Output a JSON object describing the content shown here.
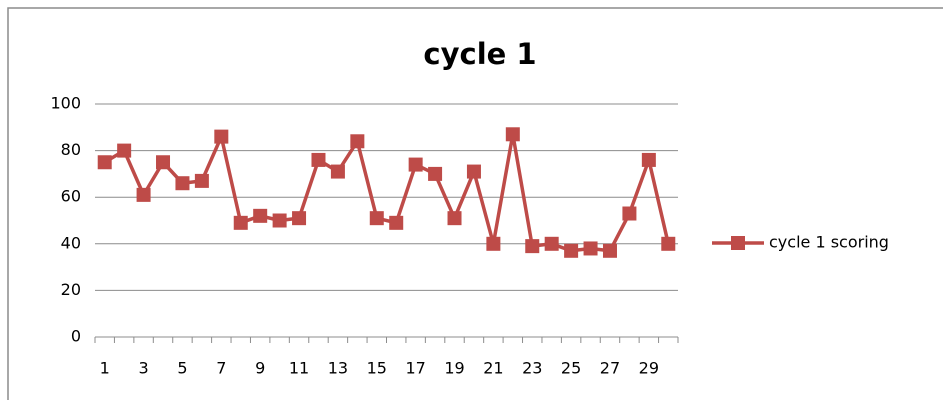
{
  "chart_data": {
    "type": "line",
    "title": "cycle 1",
    "categories": [
      1,
      null,
      3,
      null,
      5,
      null,
      7,
      null,
      9,
      null,
      11,
      null,
      13,
      null,
      15,
      null,
      17,
      null,
      19,
      null,
      21,
      null,
      23,
      null,
      25,
      null,
      27,
      null,
      29,
      null
    ],
    "series": [
      {
        "name": "cycle 1 scoring",
        "color": "#be4b48",
        "values": [
          75,
          80,
          61,
          75,
          66,
          67,
          86,
          49,
          52,
          50,
          51,
          76,
          71,
          84,
          51,
          49,
          74,
          70,
          51,
          71,
          40,
          87,
          39,
          40,
          37,
          38,
          37,
          53,
          76,
          40
        ]
      }
    ],
    "ylim": [
      0,
      100
    ],
    "yticks": [
      0,
      20,
      40,
      60,
      80,
      100
    ],
    "grid": true,
    "legend": "right"
  }
}
